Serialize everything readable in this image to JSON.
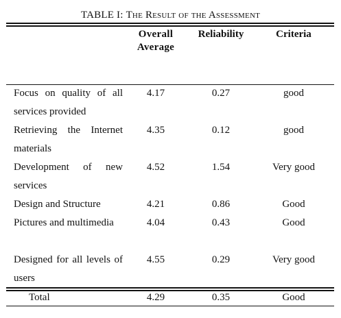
{
  "table": {
    "caption_prefix": "TABLE I: ",
    "caption_text": "The Result of the Assessment",
    "headers": {
      "average": "Overall Average",
      "reliability": "Reliability",
      "criteria": "Criteria"
    },
    "rows": [
      {
        "label": "Focus on quality of all services provided",
        "average": "4.17",
        "reliability": "0.27",
        "criteria": "good"
      },
      {
        "label": "Retrieving the Internet materials",
        "average": "4.35",
        "reliability": "0.12",
        "criteria": "good"
      },
      {
        "label": "Development of new services",
        "average": "4.52",
        "reliability": "1.54",
        "criteria": "Very good"
      },
      {
        "label": "Design and Structure",
        "average": "4.21",
        "reliability": "0.86",
        "criteria": "Good"
      },
      {
        "label": "Pictures and multimedia",
        "average": "4.04",
        "reliability": "0.43",
        "criteria": "Good"
      },
      {
        "label": "Designed for all levels of users",
        "average": "4.55",
        "reliability": "0.29",
        "criteria": "Very good"
      }
    ],
    "total": {
      "label": "Total",
      "average": "4.29",
      "reliability": "0.35",
      "criteria": "Good"
    }
  }
}
